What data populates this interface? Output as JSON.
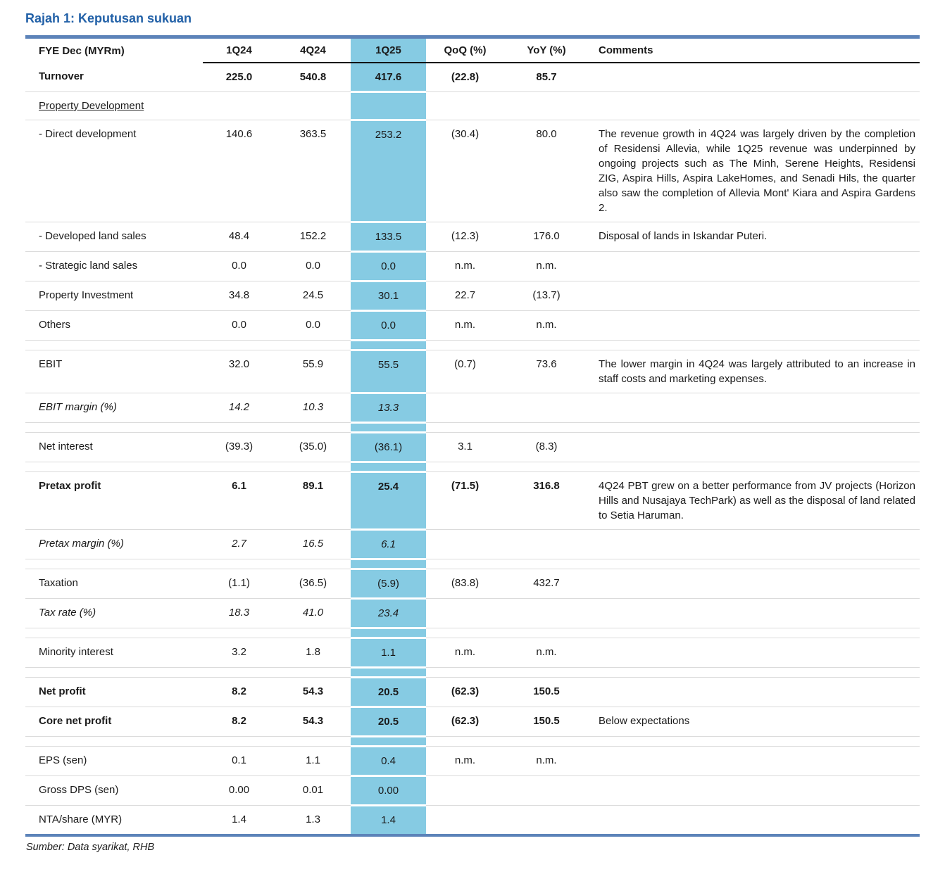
{
  "title": "Rajah 1: Keputusan sukuan",
  "source": "Sumber: Data syarikat, RHB",
  "colors": {
    "title_accent": "#2160a7",
    "rule_blue": "#5c83b9",
    "column_highlight": "#86cbe3"
  },
  "table": {
    "columns": [
      "FYE Dec (MYRm)",
      "1Q24",
      "4Q24",
      "1Q25",
      "QoQ (%)",
      "YoY (%)",
      "Comments"
    ],
    "highlighted_column": "1Q25",
    "rows": [
      {
        "style": "bold",
        "label": "Turnover",
        "v": [
          "225.0",
          "540.8",
          "417.6",
          "(22.8)",
          "85.7"
        ],
        "comment": ""
      },
      {
        "style": "section",
        "label": "Property Development",
        "v": [
          "",
          "",
          "",
          "",
          ""
        ],
        "comment": ""
      },
      {
        "style": "normal",
        "label": "- Direct development",
        "v": [
          "140.6",
          "363.5",
          "253.2",
          "(30.4)",
          "80.0"
        ],
        "comment": "The revenue growth in 4Q24 was largely driven by the completion of Residensi Allevia, while 1Q25 revenue was underpinned by ongoing projects such as The Minh, Serene Heights, Residensi ZIG, Aspira Hills, Aspira LakeHomes, and Senadi Hils, the quarter also saw the completion of Allevia Mont' Kiara and Aspira Gardens 2."
      },
      {
        "style": "normal",
        "label": "- Developed land sales",
        "v": [
          "48.4",
          "152.2",
          "133.5",
          "(12.3)",
          "176.0"
        ],
        "comment": "Disposal of lands in Iskandar Puteri."
      },
      {
        "style": "normal",
        "label": "- Strategic land sales",
        "v": [
          "0.0",
          "0.0",
          "0.0",
          "n.m.",
          "n.m."
        ],
        "comment": ""
      },
      {
        "style": "normal",
        "label": "Property Investment",
        "v": [
          "34.8",
          "24.5",
          "30.1",
          "22.7",
          "(13.7)"
        ],
        "comment": ""
      },
      {
        "style": "normal",
        "label": "Others",
        "v": [
          "0.0",
          "0.0",
          "0.0",
          "n.m.",
          "n.m."
        ],
        "comment": ""
      },
      {
        "style": "spacer",
        "label": "",
        "v": [
          "",
          "",
          "",
          "",
          ""
        ],
        "comment": ""
      },
      {
        "style": "normal",
        "label": "EBIT",
        "v": [
          "32.0",
          "55.9",
          "55.5",
          "(0.7)",
          "73.6"
        ],
        "comment": "The lower margin in 4Q24 was largely attributed to an increase in staff costs and marketing expenses."
      },
      {
        "style": "italic",
        "label": "EBIT margin (%)",
        "v": [
          "14.2",
          "10.3",
          "13.3",
          "",
          ""
        ],
        "comment": ""
      },
      {
        "style": "spacer",
        "label": "",
        "v": [
          "",
          "",
          "",
          "",
          ""
        ],
        "comment": ""
      },
      {
        "style": "normal",
        "label": "Net interest",
        "v": [
          "(39.3)",
          "(35.0)",
          "(36.1)",
          "3.1",
          "(8.3)"
        ],
        "comment": ""
      },
      {
        "style": "spacer",
        "label": "",
        "v": [
          "",
          "",
          "",
          "",
          ""
        ],
        "comment": ""
      },
      {
        "style": "bold",
        "label": "Pretax profit",
        "v": [
          "6.1",
          "89.1",
          "25.4",
          "(71.5)",
          "316.8"
        ],
        "comment": "4Q24 PBT grew on a better performance from JV projects (Horizon Hills and Nusajaya TechPark) as well as the disposal of land related to Setia Haruman."
      },
      {
        "style": "italic",
        "label": "Pretax margin (%)",
        "v": [
          "2.7",
          "16.5",
          "6.1",
          "",
          ""
        ],
        "comment": ""
      },
      {
        "style": "spacer",
        "label": "",
        "v": [
          "",
          "",
          "",
          "",
          ""
        ],
        "comment": ""
      },
      {
        "style": "normal",
        "label": "Taxation",
        "v": [
          "(1.1)",
          "(36.5)",
          "(5.9)",
          "(83.8)",
          "432.7"
        ],
        "comment": ""
      },
      {
        "style": "italic",
        "label": "Tax rate (%)",
        "v": [
          "18.3",
          "41.0",
          "23.4",
          "",
          ""
        ],
        "comment": ""
      },
      {
        "style": "spacer",
        "label": "",
        "v": [
          "",
          "",
          "",
          "",
          ""
        ],
        "comment": ""
      },
      {
        "style": "normal",
        "label": "Minority interest",
        "v": [
          "3.2",
          "1.8",
          "1.1",
          "n.m.",
          "n.m."
        ],
        "comment": ""
      },
      {
        "style": "spacer",
        "label": "",
        "v": [
          "",
          "",
          "",
          "",
          ""
        ],
        "comment": ""
      },
      {
        "style": "bold",
        "label": "Net profit",
        "v": [
          "8.2",
          "54.3",
          "20.5",
          "(62.3)",
          "150.5"
        ],
        "comment": ""
      },
      {
        "style": "bold",
        "label": "Core net profit",
        "v": [
          "8.2",
          "54.3",
          "20.5",
          "(62.3)",
          "150.5"
        ],
        "comment": "Below expectations"
      },
      {
        "style": "spacer",
        "label": "",
        "v": [
          "",
          "",
          "",
          "",
          ""
        ],
        "comment": ""
      },
      {
        "style": "normal",
        "label": "EPS (sen)",
        "v": [
          "0.1",
          "1.1",
          "0.4",
          "n.m.",
          "n.m."
        ],
        "comment": ""
      },
      {
        "style": "normal",
        "label": "Gross DPS (sen)",
        "v": [
          "0.00",
          "0.01",
          "0.00",
          "",
          ""
        ],
        "comment": ""
      },
      {
        "style": "normal",
        "label": "NTA/share (MYR)",
        "v": [
          "1.4",
          "1.3",
          "1.4",
          "",
          ""
        ],
        "comment": ""
      }
    ]
  }
}
